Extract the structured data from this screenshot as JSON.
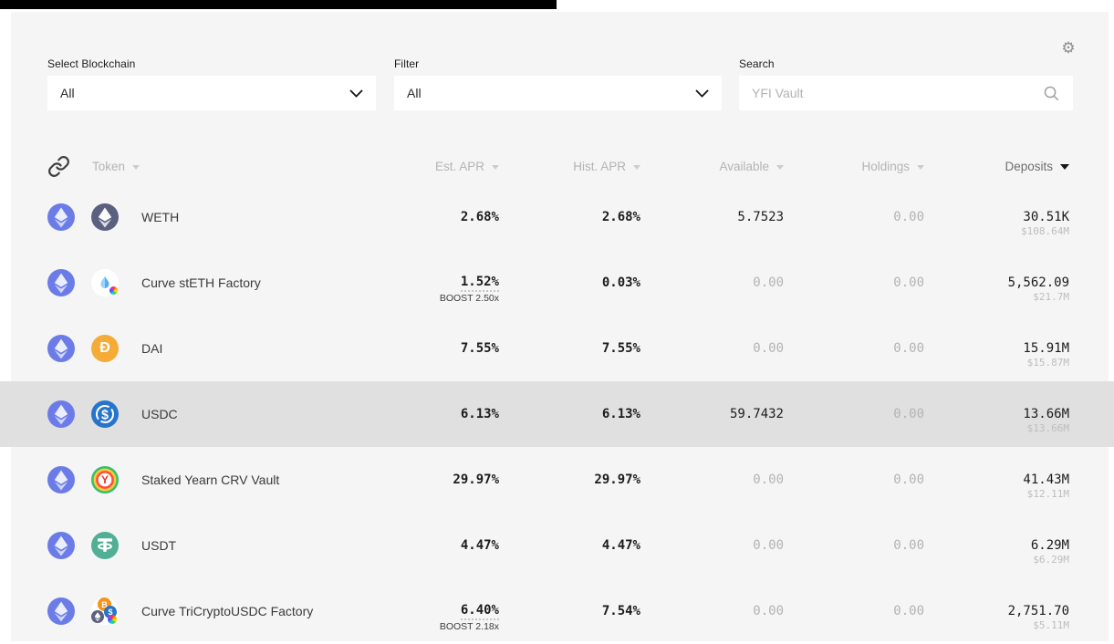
{
  "page": {
    "background": "#ffffff",
    "panel_background": "#f5f5f5",
    "highlight_background": "#e0e0e0",
    "topbar_color": "#000000"
  },
  "controls": {
    "blockchain_label": "Select Blockchain",
    "blockchain_value": "All",
    "filter_label": "Filter",
    "filter_value": "All",
    "search_label": "Search",
    "search_placeholder": "YFI Vault",
    "settings_icon": "gear-icon",
    "settings_glyph": "⚙"
  },
  "header": {
    "link_icon": "link-icon",
    "token": "Token",
    "est_apr": "Est. APR",
    "hist_apr": "Hist. APR",
    "available": "Available",
    "holdings": "Holdings",
    "deposits": "Deposits",
    "sorted_by": "Deposits",
    "sort_direction": "desc"
  },
  "token_colors": {
    "ethereum": "#6b7ce8",
    "weth": "#5b6080",
    "steth_droplet": "#54aef7",
    "dai": "#f5ac37",
    "usdc": "#2775ca",
    "usdt": "#50af95",
    "btc": "#f7931a",
    "yearn_y": "#e3342f"
  },
  "rows": [
    {
      "chain_icon": "ethereum",
      "token_icon": "weth",
      "name": "WETH",
      "est_apr": "2.68%",
      "boost": null,
      "hist_apr": "2.68%",
      "available": "5.7523",
      "holdings": "0.00",
      "deposits": "30.51K",
      "deposits_usd": "$108.64M",
      "highlighted": false
    },
    {
      "chain_icon": "ethereum",
      "token_icon": "steth",
      "name": "Curve stETH Factory",
      "est_apr": "1.52%",
      "boost": "BOOST 2.50x",
      "hist_apr": "0.03%",
      "available": "0.00",
      "holdings": "0.00",
      "deposits": "5,562.09",
      "deposits_usd": "$21.7M",
      "highlighted": false
    },
    {
      "chain_icon": "ethereum",
      "token_icon": "dai",
      "name": "DAI",
      "est_apr": "7.55%",
      "boost": null,
      "hist_apr": "7.55%",
      "available": "0.00",
      "holdings": "0.00",
      "deposits": "15.91M",
      "deposits_usd": "$15.87M",
      "highlighted": false
    },
    {
      "chain_icon": "ethereum",
      "token_icon": "usdc",
      "name": "USDC",
      "est_apr": "6.13%",
      "boost": null,
      "hist_apr": "6.13%",
      "available": "59.7432",
      "holdings": "0.00",
      "deposits": "13.66M",
      "deposits_usd": "$13.66M",
      "highlighted": true
    },
    {
      "chain_icon": "ethereum",
      "token_icon": "yearn-crv",
      "name": "Staked Yearn CRV Vault",
      "est_apr": "29.97%",
      "boost": null,
      "hist_apr": "29.97%",
      "available": "0.00",
      "holdings": "0.00",
      "deposits": "41.43M",
      "deposits_usd": "$12.11M",
      "highlighted": false
    },
    {
      "chain_icon": "ethereum",
      "token_icon": "usdt",
      "name": "USDT",
      "est_apr": "4.47%",
      "boost": null,
      "hist_apr": "4.47%",
      "available": "0.00",
      "holdings": "0.00",
      "deposits": "6.29M",
      "deposits_usd": "$6.29M",
      "highlighted": false
    },
    {
      "chain_icon": "ethereum",
      "token_icon": "tricrypto",
      "name": "Curve TriCryptoUSDC Factory",
      "est_apr": "6.40%",
      "boost": "BOOST 2.18x",
      "hist_apr": "7.54%",
      "available": "0.00",
      "holdings": "0.00",
      "deposits": "2,751.70",
      "deposits_usd": "$5.11M",
      "highlighted": false
    }
  ]
}
